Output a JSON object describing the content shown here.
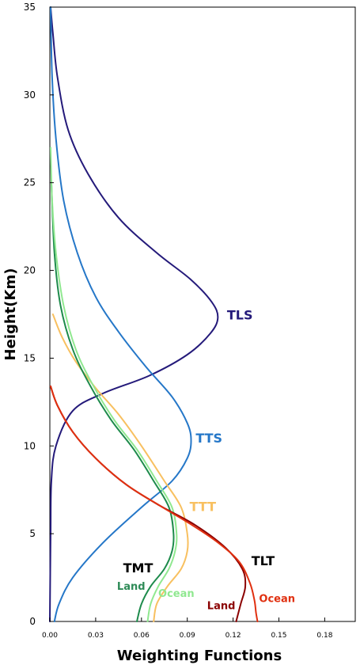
{
  "chart_data": {
    "type": "line",
    "title": "",
    "xlabel": "Weighting Functions",
    "ylabel": "Height(Km)",
    "xlim": [
      0,
      0.2
    ],
    "ylim": [
      0,
      35
    ],
    "xticks": [
      "0.00",
      "0.03",
      "0.06",
      "0.09",
      "0.12",
      "0.15",
      "0.18"
    ],
    "yticks": [
      "0",
      "5",
      "10",
      "15",
      "20",
      "25",
      "30",
      "35"
    ],
    "grid": false,
    "series": [
      {
        "name": "TLS",
        "color": "#241a7a",
        "points": [
          [
            0.0,
            0
          ],
          [
            0.0005,
            5
          ],
          [
            0.001,
            8
          ],
          [
            0.004,
            10
          ],
          [
            0.015,
            12
          ],
          [
            0.035,
            13
          ],
          [
            0.065,
            14
          ],
          [
            0.09,
            15.2
          ],
          [
            0.105,
            16.4
          ],
          [
            0.11,
            17.3
          ],
          [
            0.106,
            18.2
          ],
          [
            0.092,
            19.5
          ],
          [
            0.07,
            21
          ],
          [
            0.045,
            23
          ],
          [
            0.025,
            25.5
          ],
          [
            0.012,
            28
          ],
          [
            0.005,
            31
          ],
          [
            0.002,
            33.5
          ],
          [
            0.0005,
            35
          ]
        ]
      },
      {
        "name": "TTS",
        "color": "#2577c8",
        "points": [
          [
            0.003,
            0
          ],
          [
            0.006,
            1
          ],
          [
            0.015,
            2.5
          ],
          [
            0.035,
            4.5
          ],
          [
            0.06,
            6.5
          ],
          [
            0.08,
            8
          ],
          [
            0.09,
            9.3
          ],
          [
            0.0925,
            10.3
          ],
          [
            0.09,
            11.3
          ],
          [
            0.08,
            12.8
          ],
          [
            0.063,
            14.5
          ],
          [
            0.045,
            16.5
          ],
          [
            0.03,
            18.5
          ],
          [
            0.018,
            21
          ],
          [
            0.009,
            24
          ],
          [
            0.004,
            27.5
          ],
          [
            0.0015,
            31
          ],
          [
            0.0005,
            35
          ]
        ]
      },
      {
        "name": "TTT",
        "color": "#f8c060",
        "points": [
          [
            0.068,
            0
          ],
          [
            0.07,
            1
          ],
          [
            0.077,
            2
          ],
          [
            0.086,
            3
          ],
          [
            0.09,
            4
          ],
          [
            0.09,
            5
          ],
          [
            0.086,
            6.5
          ],
          [
            0.075,
            8
          ],
          [
            0.06,
            10
          ],
          [
            0.045,
            11.8
          ],
          [
            0.03,
            13.3
          ],
          [
            0.017,
            14.8
          ],
          [
            0.008,
            16.2
          ],
          [
            0.002,
            17.5
          ]
        ]
      },
      {
        "name": "TMT Land",
        "color": "#1e8b4c",
        "points": [
          [
            0.057,
            0
          ],
          [
            0.06,
            1
          ],
          [
            0.066,
            2
          ],
          [
            0.075,
            3
          ],
          [
            0.08,
            4
          ],
          [
            0.081,
            5
          ],
          [
            0.078,
            6.5
          ],
          [
            0.068,
            8
          ],
          [
            0.055,
            9.8
          ],
          [
            0.04,
            11.5
          ],
          [
            0.026,
            13.5
          ],
          [
            0.015,
            15.5
          ],
          [
            0.007,
            18
          ],
          [
            0.003,
            21
          ],
          [
            0.001,
            25
          ]
        ]
      },
      {
        "name": "TMT Ocean",
        "color": "#90e890",
        "points": [
          [
            0.064,
            0
          ],
          [
            0.066,
            1
          ],
          [
            0.071,
            2
          ],
          [
            0.078,
            3
          ],
          [
            0.082,
            4
          ],
          [
            0.083,
            5
          ],
          [
            0.08,
            6.5
          ],
          [
            0.07,
            8
          ],
          [
            0.057,
            9.8
          ],
          [
            0.042,
            11.5
          ],
          [
            0.028,
            13.5
          ],
          [
            0.017,
            15.5
          ],
          [
            0.009,
            18
          ],
          [
            0.004,
            21
          ],
          [
            0.0015,
            24
          ],
          [
            0.0005,
            27
          ]
        ]
      },
      {
        "name": "TLT Land",
        "color": "#8b0000",
        "points": [
          [
            0.122,
            0
          ],
          [
            0.125,
            1
          ],
          [
            0.128,
            2
          ],
          [
            0.126,
            3
          ],
          [
            0.115,
            4.2
          ],
          [
            0.095,
            5.5
          ],
          [
            0.072,
            6.6
          ],
          [
            0.05,
            7.8
          ],
          [
            0.03,
            9.3
          ],
          [
            0.015,
            10.8
          ],
          [
            0.005,
            12.3
          ],
          [
            0.0005,
            13.4
          ]
        ]
      },
      {
        "name": "TLT Ocean",
        "color": "#e03010",
        "points": [
          [
            0.136,
            0
          ],
          [
            0.135,
            0.5
          ],
          [
            0.134,
            1.2
          ],
          [
            0.131,
            2.2
          ],
          [
            0.124,
            3.4
          ],
          [
            0.11,
            4.5
          ],
          [
            0.093,
            5.5
          ],
          [
            0.072,
            6.6
          ],
          [
            0.05,
            7.8
          ],
          [
            0.03,
            9.3
          ],
          [
            0.015,
            10.8
          ],
          [
            0.005,
            12.3
          ],
          [
            0.0005,
            13.4
          ]
        ]
      }
    ],
    "annotations": [
      {
        "text": "TLS",
        "color": "#241a7a",
        "x": 0.116,
        "y": 17.2,
        "size": 16
      },
      {
        "text": "TTS",
        "color": "#2577c8",
        "x": 0.0955,
        "y": 10.2,
        "size": 16
      },
      {
        "text": "TTT",
        "color": "#f8c060",
        "x": 0.0915,
        "y": 6.3,
        "size": 16
      },
      {
        "text": "TMT",
        "color": "#000000",
        "x": 0.048,
        "y": 2.8,
        "size": 16
      },
      {
        "text": "Land",
        "color": "#2e8b57",
        "x": 0.044,
        "y": 1.8,
        "size": 13
      },
      {
        "text": "Ocean",
        "color": "#90e890",
        "x": 0.071,
        "y": 1.4,
        "size": 13
      },
      {
        "text": "TLT",
        "color": "#000000",
        "x": 0.132,
        "y": 3.2,
        "size": 16
      },
      {
        "text": "Land",
        "color": "#8b0000",
        "x": 0.103,
        "y": 0.7,
        "size": 13
      },
      {
        "text": "Ocean",
        "color": "#e03010",
        "x": 0.137,
        "y": 1.1,
        "size": 13
      }
    ]
  }
}
